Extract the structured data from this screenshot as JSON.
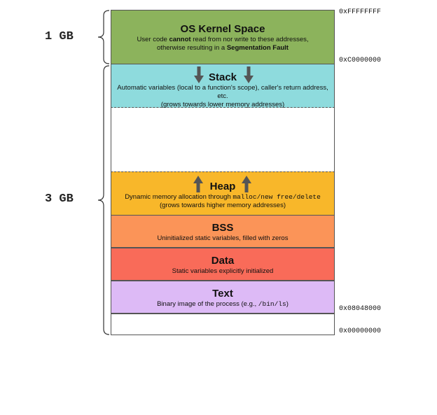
{
  "segments": {
    "kernel": {
      "title": "OS Kernel Space",
      "desc_line1_pre": "User code ",
      "desc_line1_bold": "cannot",
      "desc_line1_post": " read from nor write to these addresses,",
      "desc_line2_pre": "otherwise resulting in a ",
      "desc_line2_bold": "Segmentation Fault",
      "color": "#8cb35c"
    },
    "stack": {
      "title": "Stack",
      "desc_line1": "Automatic variables (local to a function's scope), caller's return address, etc.",
      "desc_line2": "(grows towards lower memory addresses)",
      "color": "#8edbdd"
    },
    "heap": {
      "title": "Heap",
      "desc_line1_pre": "Dynamic memory allocation through ",
      "desc_line1_code": "malloc/new free/delete",
      "desc_line2": "(grows towards higher memory addresses)",
      "color": "#f8b72a"
    },
    "bss": {
      "title": "BSS",
      "desc": "Uninitialized static variables, filled with zeros",
      "color": "#fb9458"
    },
    "data": {
      "title": "Data",
      "desc": "Static variables explicitly initialized",
      "color": "#f96b59"
    },
    "text": {
      "title": "Text",
      "desc_pre": "Binary image of the process (e.g., ",
      "desc_code": "/bin/ls",
      "desc_post": ")",
      "color": "#ddbaf6"
    }
  },
  "addresses": {
    "top": "0xFFFFFFFF",
    "kernel_start": "0xC0000000",
    "text_start": "0x08048000",
    "bottom": "0x00000000"
  },
  "sizes": {
    "kernel": "1 GB",
    "user": "3 GB"
  }
}
